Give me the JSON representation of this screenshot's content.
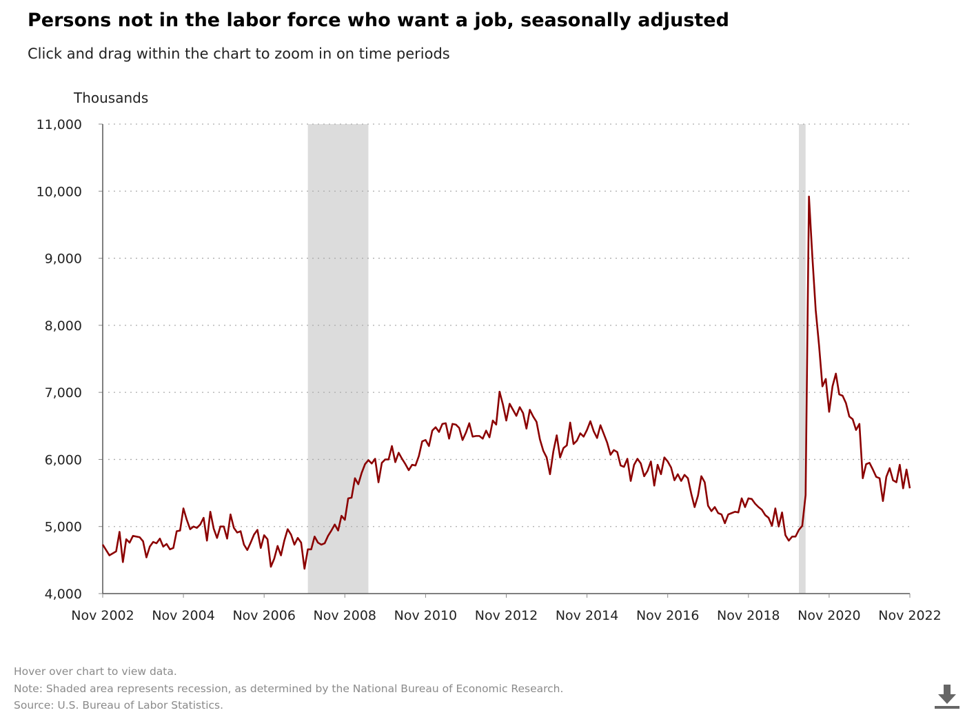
{
  "header": {
    "title": "Persons not in the labor force who want a job, seasonally adjusted",
    "subtitle": "Click and drag within the chart to zoom in on time periods"
  },
  "footer": {
    "hover_note": "Hover over chart to view data.",
    "recession_note": "Note: Shaded area represents recession, as determined by the National Bureau of Economic Research.",
    "source": "Source: U.S. Bureau of Labor Statistics."
  },
  "download_icon": "download-icon",
  "chart_data": {
    "type": "line",
    "title": "Persons not in the labor force who want a job, seasonally adjusted",
    "ylabel": "Thousands",
    "xlabel": "",
    "ylim": [
      4000,
      11000
    ],
    "yticks": [
      4000,
      5000,
      6000,
      7000,
      8000,
      9000,
      10000,
      11000
    ],
    "ytick_labels": [
      "4,000",
      "5,000",
      "6,000",
      "7,000",
      "8,000",
      "9,000",
      "10,000",
      "11,000"
    ],
    "xrange": [
      "2002-11",
      "2022-11"
    ],
    "xticks": [
      "2002-11",
      "2004-11",
      "2006-11",
      "2008-11",
      "2010-11",
      "2012-11",
      "2014-11",
      "2016-11",
      "2018-11",
      "2020-11",
      "2022-11"
    ],
    "xtick_labels": [
      "Nov 2002",
      "Nov 2004",
      "Nov 2006",
      "Nov 2008",
      "Nov 2010",
      "Nov 2012",
      "Nov 2014",
      "Nov 2016",
      "Nov 2018",
      "Nov 2020",
      "Nov 2022"
    ],
    "grid": "horizontal dotted",
    "line_color": "#8b0000",
    "recession_color": "#dcdcdc",
    "recessions": [
      [
        "2007-12",
        "2009-06"
      ],
      [
        "2020-02",
        "2020-04"
      ]
    ],
    "series": [
      {
        "values": [
          [
            "2002-11",
            4730
          ],
          [
            "2003-01",
            4570
          ],
          [
            "2003-03",
            4630
          ],
          [
            "2003-04",
            4920
          ],
          [
            "2003-05",
            4470
          ],
          [
            "2003-06",
            4810
          ],
          [
            "2003-07",
            4760
          ],
          [
            "2003-08",
            4860
          ],
          [
            "2003-10",
            4840
          ],
          [
            "2003-11",
            4780
          ],
          [
            "2003-12",
            4540
          ],
          [
            "2004-01",
            4700
          ],
          [
            "2004-02",
            4770
          ],
          [
            "2004-03",
            4750
          ],
          [
            "2004-04",
            4820
          ],
          [
            "2004-05",
            4700
          ],
          [
            "2004-06",
            4740
          ],
          [
            "2004-07",
            4660
          ],
          [
            "2004-08",
            4680
          ],
          [
            "2004-09",
            4930
          ],
          [
            "2004-10",
            4940
          ],
          [
            "2004-11",
            5270
          ],
          [
            "2004-12",
            5100
          ],
          [
            "2005-01",
            4960
          ],
          [
            "2005-02",
            5000
          ],
          [
            "2005-03",
            4980
          ],
          [
            "2005-04",
            5030
          ],
          [
            "2005-05",
            5130
          ],
          [
            "2005-06",
            4790
          ],
          [
            "2005-07",
            5220
          ],
          [
            "2005-08",
            4970
          ],
          [
            "2005-09",
            4830
          ],
          [
            "2005-10",
            5000
          ],
          [
            "2005-11",
            5000
          ],
          [
            "2005-12",
            4820
          ],
          [
            "2006-01",
            5180
          ],
          [
            "2006-02",
            4980
          ],
          [
            "2006-03",
            4910
          ],
          [
            "2006-04",
            4930
          ],
          [
            "2006-05",
            4730
          ],
          [
            "2006-06",
            4650
          ],
          [
            "2006-07",
            4760
          ],
          [
            "2006-08",
            4880
          ],
          [
            "2006-09",
            4950
          ],
          [
            "2006-10",
            4680
          ],
          [
            "2006-11",
            4870
          ],
          [
            "2006-12",
            4810
          ],
          [
            "2007-01",
            4400
          ],
          [
            "2007-02",
            4520
          ],
          [
            "2007-03",
            4710
          ],
          [
            "2007-04",
            4570
          ],
          [
            "2007-05",
            4790
          ],
          [
            "2007-06",
            4960
          ],
          [
            "2007-07",
            4880
          ],
          [
            "2007-08",
            4730
          ],
          [
            "2007-09",
            4830
          ],
          [
            "2007-10",
            4760
          ],
          [
            "2007-11",
            4370
          ],
          [
            "2007-12",
            4660
          ],
          [
            "2008-01",
            4660
          ],
          [
            "2008-02",
            4850
          ],
          [
            "2008-03",
            4760
          ],
          [
            "2008-04",
            4730
          ],
          [
            "2008-05",
            4750
          ],
          [
            "2008-06",
            4860
          ],
          [
            "2008-07",
            4940
          ],
          [
            "2008-08",
            5030
          ],
          [
            "2008-09",
            4940
          ],
          [
            "2008-10",
            5160
          ],
          [
            "2008-11",
            5100
          ],
          [
            "2008-12",
            5420
          ],
          [
            "2009-01",
            5430
          ],
          [
            "2009-02",
            5720
          ],
          [
            "2009-03",
            5630
          ],
          [
            "2009-04",
            5800
          ],
          [
            "2009-05",
            5930
          ],
          [
            "2009-06",
            5990
          ],
          [
            "2009-07",
            5940
          ],
          [
            "2009-08",
            6010
          ],
          [
            "2009-09",
            5660
          ],
          [
            "2009-10",
            5950
          ],
          [
            "2009-11",
            6000
          ],
          [
            "2009-12",
            6000
          ],
          [
            "2010-01",
            6200
          ],
          [
            "2010-02",
            5960
          ],
          [
            "2010-03",
            6100
          ],
          [
            "2010-04",
            6010
          ],
          [
            "2010-05",
            5930
          ],
          [
            "2010-06",
            5840
          ],
          [
            "2010-07",
            5920
          ],
          [
            "2010-08",
            5910
          ],
          [
            "2010-09",
            6050
          ],
          [
            "2010-10",
            6270
          ],
          [
            "2010-11",
            6290
          ],
          [
            "2010-12",
            6200
          ],
          [
            "2011-01",
            6430
          ],
          [
            "2011-02",
            6480
          ],
          [
            "2011-03",
            6410
          ],
          [
            "2011-04",
            6530
          ],
          [
            "2011-05",
            6540
          ],
          [
            "2011-06",
            6310
          ],
          [
            "2011-07",
            6530
          ],
          [
            "2011-08",
            6520
          ],
          [
            "2011-09",
            6470
          ],
          [
            "2011-10",
            6290
          ],
          [
            "2011-11",
            6400
          ],
          [
            "2011-12",
            6540
          ],
          [
            "2012-01",
            6340
          ],
          [
            "2012-02",
            6350
          ],
          [
            "2012-03",
            6350
          ],
          [
            "2012-04",
            6310
          ],
          [
            "2012-05",
            6430
          ],
          [
            "2012-06",
            6330
          ],
          [
            "2012-07",
            6580
          ],
          [
            "2012-08",
            6520
          ],
          [
            "2012-09",
            7010
          ],
          [
            "2012-10",
            6820
          ],
          [
            "2012-11",
            6580
          ],
          [
            "2012-12",
            6830
          ],
          [
            "2013-01",
            6740
          ],
          [
            "2013-02",
            6650
          ],
          [
            "2013-03",
            6780
          ],
          [
            "2013-04",
            6690
          ],
          [
            "2013-05",
            6460
          ],
          [
            "2013-06",
            6740
          ],
          [
            "2013-07",
            6640
          ],
          [
            "2013-08",
            6560
          ],
          [
            "2013-09",
            6300
          ],
          [
            "2013-10",
            6130
          ],
          [
            "2013-11",
            6030
          ],
          [
            "2013-12",
            5780
          ],
          [
            "2014-01",
            6120
          ],
          [
            "2014-02",
            6360
          ],
          [
            "2014-03",
            6030
          ],
          [
            "2014-04",
            6170
          ],
          [
            "2014-05",
            6210
          ],
          [
            "2014-06",
            6550
          ],
          [
            "2014-07",
            6230
          ],
          [
            "2014-08",
            6280
          ],
          [
            "2014-09",
            6390
          ],
          [
            "2014-10",
            6340
          ],
          [
            "2014-11",
            6440
          ],
          [
            "2014-12",
            6570
          ],
          [
            "2015-01",
            6420
          ],
          [
            "2015-02",
            6320
          ],
          [
            "2015-03",
            6510
          ],
          [
            "2015-04",
            6380
          ],
          [
            "2015-05",
            6250
          ],
          [
            "2015-06",
            6070
          ],
          [
            "2015-07",
            6140
          ],
          [
            "2015-08",
            6110
          ],
          [
            "2015-09",
            5910
          ],
          [
            "2015-10",
            5890
          ],
          [
            "2015-11",
            6010
          ],
          [
            "2015-12",
            5680
          ],
          [
            "2016-01",
            5920
          ],
          [
            "2016-02",
            6010
          ],
          [
            "2016-03",
            5940
          ],
          [
            "2016-04",
            5750
          ],
          [
            "2016-05",
            5830
          ],
          [
            "2016-06",
            5970
          ],
          [
            "2016-07",
            5610
          ],
          [
            "2016-08",
            5920
          ],
          [
            "2016-09",
            5780
          ],
          [
            "2016-10",
            6030
          ],
          [
            "2016-11",
            5970
          ],
          [
            "2016-12",
            5880
          ],
          [
            "2017-01",
            5690
          ],
          [
            "2017-02",
            5780
          ],
          [
            "2017-03",
            5680
          ],
          [
            "2017-04",
            5770
          ],
          [
            "2017-05",
            5720
          ],
          [
            "2017-06",
            5490
          ],
          [
            "2017-07",
            5290
          ],
          [
            "2017-08",
            5460
          ],
          [
            "2017-09",
            5750
          ],
          [
            "2017-10",
            5660
          ],
          [
            "2017-11",
            5310
          ],
          [
            "2017-12",
            5230
          ],
          [
            "2018-01",
            5290
          ],
          [
            "2018-02",
            5200
          ],
          [
            "2018-03",
            5180
          ],
          [
            "2018-04",
            5050
          ],
          [
            "2018-05",
            5180
          ],
          [
            "2018-06",
            5200
          ],
          [
            "2018-07",
            5220
          ],
          [
            "2018-08",
            5210
          ],
          [
            "2018-09",
            5420
          ],
          [
            "2018-10",
            5290
          ],
          [
            "2018-11",
            5420
          ],
          [
            "2018-12",
            5410
          ],
          [
            "2019-01",
            5340
          ],
          [
            "2019-02",
            5290
          ],
          [
            "2019-03",
            5250
          ],
          [
            "2019-04",
            5170
          ],
          [
            "2019-05",
            5130
          ],
          [
            "2019-06",
            5010
          ],
          [
            "2019-07",
            5270
          ],
          [
            "2019-08",
            5000
          ],
          [
            "2019-09",
            5210
          ],
          [
            "2019-10",
            4870
          ],
          [
            "2019-11",
            4790
          ],
          [
            "2019-12",
            4850
          ],
          [
            "2020-01",
            4850
          ],
          [
            "2020-02",
            4950
          ],
          [
            "2020-03",
            5010
          ],
          [
            "2020-04",
            5470
          ],
          [
            "2020-05",
            9920
          ],
          [
            "2020-06",
            9030
          ],
          [
            "2020-07",
            8230
          ],
          [
            "2020-08",
            7700
          ],
          [
            "2020-09",
            7090
          ],
          [
            "2020-10",
            7200
          ],
          [
            "2020-11",
            6710
          ],
          [
            "2020-12",
            7090
          ],
          [
            "2021-01",
            7280
          ],
          [
            "2021-02",
            6970
          ],
          [
            "2021-03",
            6950
          ],
          [
            "2021-04",
            6840
          ],
          [
            "2021-05",
            6640
          ],
          [
            "2021-06",
            6600
          ],
          [
            "2021-07",
            6440
          ],
          [
            "2021-08",
            6530
          ],
          [
            "2021-09",
            5720
          ],
          [
            "2021-10",
            5930
          ],
          [
            "2021-11",
            5950
          ],
          [
            "2021-12",
            5850
          ],
          [
            "2022-01",
            5740
          ],
          [
            "2022-02",
            5720
          ],
          [
            "2022-03",
            5380
          ],
          [
            "2022-04",
            5740
          ],
          [
            "2022-05",
            5870
          ],
          [
            "2022-06",
            5690
          ],
          [
            "2022-07",
            5660
          ],
          [
            "2022-08",
            5920
          ],
          [
            "2022-09",
            5570
          ],
          [
            "2022-10",
            5850
          ],
          [
            "2022-11",
            5570
          ]
        ]
      }
    ]
  }
}
